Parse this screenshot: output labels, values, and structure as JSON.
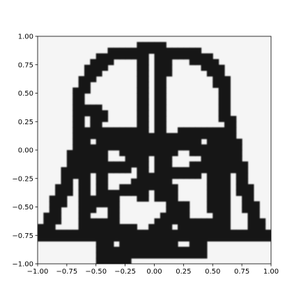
{
  "chart_data": {
    "type": "heatmap",
    "title": "",
    "xlabel": "",
    "ylabel": "",
    "xlim": [
      -1.0,
      1.0
    ],
    "ylim": [
      -1.0,
      1.0
    ],
    "x_ticks": [
      -1.0,
      -0.75,
      -0.5,
      -0.25,
      0.0,
      0.25,
      0.5,
      0.75,
      1.0
    ],
    "y_ticks": [
      -1.0,
      -0.75,
      -0.5,
      -0.25,
      0.0,
      0.25,
      0.5,
      0.75,
      1.0
    ],
    "x_tick_labels": [
      "−1.00",
      "−0.75",
      "−0.50",
      "−0.25",
      "0.00",
      "0.25",
      "0.50",
      "0.75",
      "1.00"
    ],
    "y_tick_labels": [
      "−1.00",
      "−0.75",
      "−0.50",
      "−0.25",
      "0.00",
      "0.25",
      "0.50",
      "0.75",
      "1.00"
    ],
    "grid": false,
    "legend": false,
    "colormap": "gray",
    "background_value": 0.04,
    "cell_size": [
      0.05,
      0.05
    ],
    "colors": {
      "ink": "#141414",
      "background": "#f5f5f5",
      "axes": "#000000"
    },
    "strokes_value": 1.0,
    "strokes": [
      [
        [
          -0.95,
          -0.74
        ],
        [
          0.95,
          -0.74
        ]
      ],
      [
        [
          -0.95,
          -0.74
        ],
        [
          -0.88,
          -0.6
        ],
        [
          -0.82,
          -0.5
        ],
        [
          -0.78,
          -0.38
        ],
        [
          -0.73,
          -0.28
        ],
        [
          -0.68,
          -0.1
        ],
        [
          -0.64,
          0.0
        ],
        [
          -0.63,
          0.15
        ],
        [
          -0.62,
          0.5
        ],
        [
          -0.57,
          0.62
        ],
        [
          -0.5,
          0.73
        ],
        [
          -0.4,
          0.84
        ],
        [
          -0.2,
          0.88
        ],
        [
          -0.1,
          0.88
        ],
        [
          -0.05,
          0.93
        ],
        [
          0.05,
          0.93
        ],
        [
          0.1,
          0.88
        ],
        [
          0.28,
          0.88
        ],
        [
          0.45,
          0.82
        ],
        [
          0.55,
          0.72
        ],
        [
          0.6,
          0.62
        ],
        [
          0.63,
          0.48
        ],
        [
          0.65,
          0.3
        ],
        [
          0.68,
          0.15
        ],
        [
          0.72,
          0.0
        ],
        [
          0.75,
          -0.15
        ],
        [
          0.78,
          -0.28
        ],
        [
          0.82,
          -0.4
        ],
        [
          0.87,
          -0.55
        ],
        [
          0.95,
          -0.74
        ]
      ],
      [
        [
          -0.05,
          0.92
        ],
        [
          -0.05,
          0.15
        ]
      ],
      [
        [
          0.08,
          0.88
        ],
        [
          0.08,
          0.15
        ]
      ],
      [
        [
          0.15,
          0.78
        ],
        [
          0.15,
          0.72
        ]
      ],
      [
        [
          -0.55,
          0.4
        ],
        [
          -0.45,
          0.3
        ],
        [
          -0.5,
          0.28
        ]
      ],
      [
        [
          -0.62,
          0.15
        ],
        [
          -0.55,
          0.2
        ],
        [
          -0.25,
          0.2
        ],
        [
          -0.1,
          0.12
        ],
        [
          0.0,
          0.15
        ],
        [
          0.25,
          0.15
        ],
        [
          0.4,
          0.2
        ],
        [
          0.6,
          0.2
        ]
      ],
      [
        [
          -0.45,
          0.12
        ],
        [
          -0.45,
          -0.4
        ]
      ],
      [
        [
          -0.55,
          0.05
        ],
        [
          -0.55,
          -0.5
        ]
      ],
      [
        [
          0.5,
          0.1
        ],
        [
          0.5,
          -0.45
        ]
      ],
      [
        [
          0.62,
          0.1
        ],
        [
          0.62,
          -0.55
        ]
      ],
      [
        [
          -0.45,
          -0.4
        ],
        [
          -0.6,
          -0.55
        ],
        [
          -0.6,
          -0.62
        ],
        [
          -0.45,
          -0.62
        ]
      ],
      [
        [
          0.5,
          -0.45
        ],
        [
          0.65,
          -0.58
        ],
        [
          0.65,
          -0.62
        ],
        [
          0.4,
          -0.62
        ]
      ],
      [
        [
          -0.52,
          0.0
        ],
        [
          -0.45,
          0.05
        ],
        [
          -0.25,
          0.05
        ],
        [
          -0.15,
          -0.05
        ],
        [
          -0.25,
          -0.15
        ],
        [
          -0.45,
          -0.15
        ],
        [
          -0.52,
          -0.1
        ]
      ],
      [
        [
          0.1,
          0.02
        ],
        [
          0.2,
          0.06
        ],
        [
          0.35,
          0.06
        ],
        [
          0.5,
          0.0
        ],
        [
          0.45,
          -0.12
        ],
        [
          0.35,
          -0.18
        ],
        [
          0.15,
          -0.18
        ],
        [
          0.08,
          -0.1
        ]
      ],
      [
        [
          -0.18,
          -0.06
        ],
        [
          -0.05,
          0.02
        ],
        [
          0.05,
          0.02
        ],
        [
          0.15,
          -0.08
        ]
      ],
      [
        [
          -0.05,
          -0.05
        ],
        [
          -0.05,
          -0.38
        ]
      ],
      [
        [
          0.05,
          -0.02
        ],
        [
          0.05,
          -0.38
        ]
      ],
      [
        [
          -0.22,
          -0.35
        ],
        [
          0.0,
          -0.25
        ],
        [
          0.15,
          -0.32
        ],
        [
          0.2,
          -0.45
        ],
        [
          0.15,
          -0.6
        ],
        [
          0.0,
          -0.72
        ]
      ],
      [
        [
          -0.3,
          -0.38
        ],
        [
          -0.35,
          -0.55
        ],
        [
          -0.3,
          -0.65
        ],
        [
          -0.2,
          -0.7
        ],
        [
          -0.35,
          -0.75
        ]
      ],
      [
        [
          0.25,
          -0.5
        ],
        [
          0.3,
          -0.65
        ],
        [
          0.3,
          -0.72
        ]
      ],
      [
        [
          -0.4,
          -0.45
        ],
        [
          -0.3,
          -0.45
        ]
      ],
      [
        [
          -0.45,
          -0.78
        ],
        [
          -0.35,
          -0.88
        ],
        [
          -0.4,
          -0.93
        ],
        [
          -0.3,
          -0.98
        ],
        [
          -0.2,
          -0.88
        ],
        [
          0.35,
          -0.88
        ],
        [
          0.45,
          -0.85
        ],
        [
          0.35,
          -0.75
        ]
      ],
      [
        [
          -0.15,
          -0.72
        ],
        [
          -0.25,
          -0.8
        ],
        [
          -0.1,
          -0.78
        ],
        [
          0.0,
          -0.82
        ],
        [
          0.2,
          -0.75
        ]
      ]
    ]
  }
}
